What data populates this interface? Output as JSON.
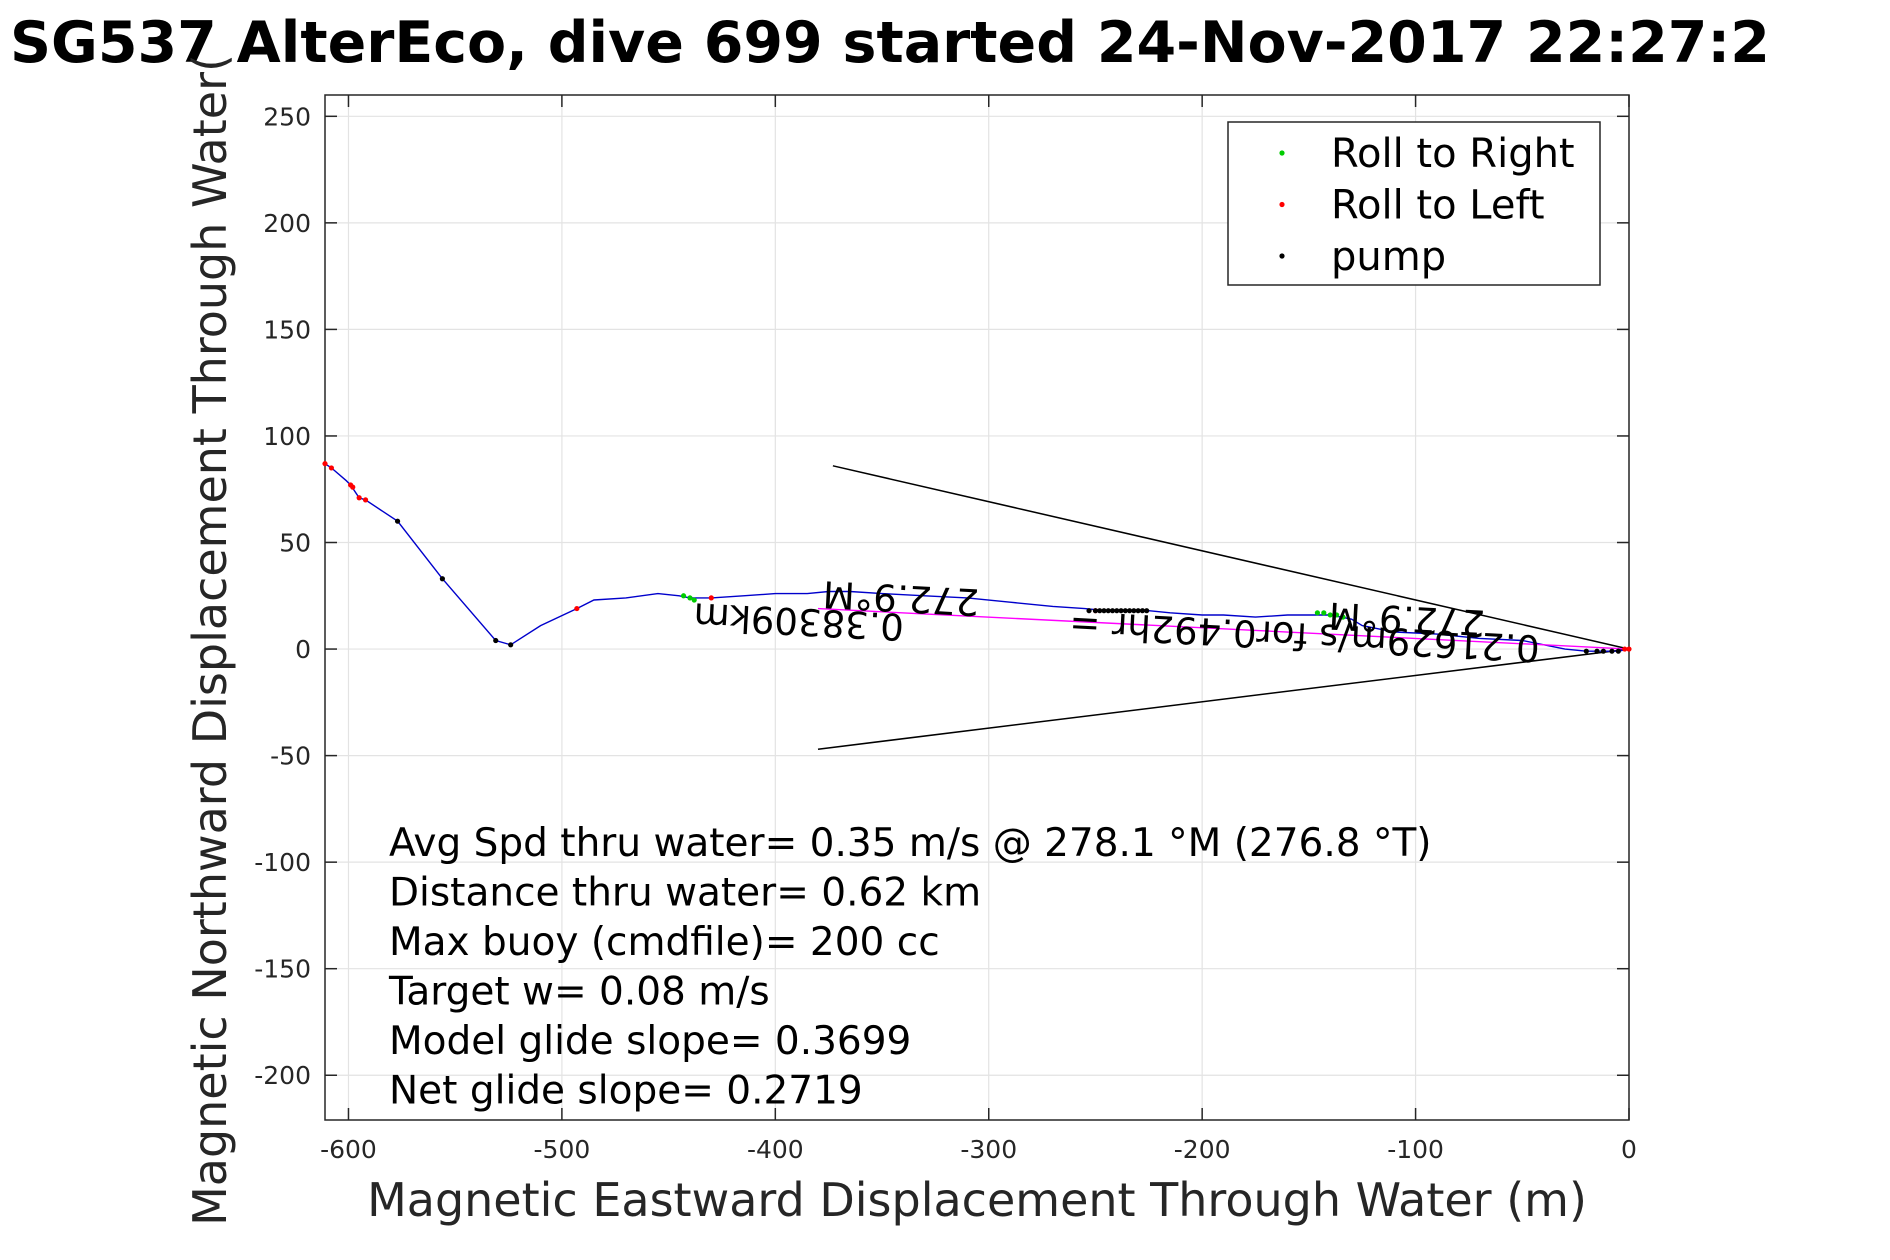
{
  "chart_data": {
    "type": "scatter",
    "title": "SG537 AlterEco, dive 699 started 24-Nov-2017 22:27:2",
    "xlabel": "Magnetic Eastward Displacement Through Water (m)",
    "ylabel": "Magnetic Northward Displacement Through Water(",
    "xlim": [
      -611,
      0
    ],
    "ylim": [
      -221,
      260
    ],
    "xticks": [
      -600,
      -500,
      -400,
      -300,
      -200,
      -100,
      0
    ],
    "yticks": [
      -200,
      -150,
      -100,
      -50,
      0,
      50,
      100,
      150,
      200,
      250
    ],
    "grid": true,
    "legend": {
      "placement": "top-right",
      "entries": [
        {
          "label": "Roll to Right",
          "color": "#00cc00"
        },
        {
          "label": "Roll to Left",
          "color": "#ff0000"
        },
        {
          "label": "pump",
          "color": "#000000"
        }
      ]
    },
    "track": {
      "color": "#0000cc",
      "points": [
        [
          0,
          0
        ],
        [
          -5,
          -1
        ],
        [
          -10,
          -1
        ],
        [
          -15,
          -1
        ],
        [
          -20,
          -1
        ],
        [
          -30,
          0
        ],
        [
          -50,
          4
        ],
        [
          -70,
          5
        ],
        [
          -90,
          7
        ],
        [
          -110,
          8
        ],
        [
          -125,
          11
        ],
        [
          -130,
          14
        ],
        [
          -135,
          15
        ],
        [
          -140,
          16
        ],
        [
          -146,
          16
        ],
        [
          -160,
          16
        ],
        [
          -175,
          15
        ],
        [
          -190,
          16
        ],
        [
          -200,
          16
        ],
        [
          -215,
          17
        ],
        [
          -225,
          18
        ],
        [
          -235,
          18
        ],
        [
          -245,
          18
        ],
        [
          -255,
          19
        ],
        [
          -270,
          20
        ],
        [
          -290,
          22
        ],
        [
          -310,
          24
        ],
        [
          -330,
          25
        ],
        [
          -350,
          26
        ],
        [
          -365,
          27
        ],
        [
          -375,
          27
        ],
        [
          -385,
          26
        ],
        [
          -400,
          26
        ],
        [
          -415,
          25
        ],
        [
          -430,
          24
        ],
        [
          -440,
          24
        ],
        [
          -445,
          25
        ],
        [
          -455,
          26
        ],
        [
          -470,
          24
        ],
        [
          -485,
          23
        ],
        [
          -493,
          19
        ],
        [
          -510,
          11
        ],
        [
          -524,
          2
        ],
        [
          -531,
          4
        ],
        [
          -556,
          33
        ],
        [
          -577,
          60
        ],
        [
          -592,
          70
        ],
        [
          -595,
          71
        ],
        [
          -599,
          77
        ],
        [
          -601,
          79
        ],
        [
          -608,
          85
        ],
        [
          -611,
          87
        ]
      ]
    },
    "bearing_line": {
      "color": "#ff00ff",
      "points": [
        [
          0,
          0
        ],
        [
          -380,
          19
        ]
      ]
    },
    "wedge_lines": {
      "color": "#000000",
      "lines": [
        [
          [
            0,
            0
          ],
          [
            -373,
            86
          ]
        ],
        [
          [
            0,
            0
          ],
          [
            -380,
            -47
          ]
        ]
      ]
    },
    "series": [
      {
        "name": "Roll to Right",
        "color": "#00cc00",
        "points": [
          [
            -440,
            24
          ],
          [
            -438,
            23
          ],
          [
            -443,
            25
          ],
          [
            -146,
            17
          ],
          [
            -143,
            17
          ],
          [
            -140,
            16
          ],
          [
            -137,
            16
          ],
          [
            -134,
            15
          ]
        ]
      },
      {
        "name": "Roll to Left",
        "color": "#ff0000",
        "points": [
          [
            -611,
            87
          ],
          [
            -608,
            85
          ],
          [
            -599,
            77
          ],
          [
            -598,
            76
          ],
          [
            -595,
            71
          ],
          [
            -592,
            70
          ],
          [
            -493,
            19
          ],
          [
            -430,
            24
          ],
          [
            -250,
            18
          ],
          [
            -2,
            0
          ],
          [
            0,
            0
          ]
        ]
      },
      {
        "name": "pump",
        "color": "#000000",
        "points": [
          [
            -577,
            60
          ],
          [
            -556,
            33
          ],
          [
            -531,
            4
          ],
          [
            -524,
            2
          ],
          [
            -253,
            18
          ],
          [
            -250,
            18
          ],
          [
            -248,
            18
          ],
          [
            -246,
            18
          ],
          [
            -244,
            18
          ],
          [
            -242,
            18
          ],
          [
            -240,
            18
          ],
          [
            -238,
            18
          ],
          [
            -236,
            18
          ],
          [
            -234,
            18
          ],
          [
            -232,
            18
          ],
          [
            -230,
            18
          ],
          [
            -228,
            18
          ],
          [
            -226,
            18
          ],
          [
            -20,
            -1
          ],
          [
            -15,
            -1
          ],
          [
            -12,
            -1
          ],
          [
            -8,
            -1
          ],
          [
            -5,
            -1
          ]
        ]
      }
    ],
    "rotated_annotations": [
      {
        "text": "272.9°M",
        "x": -341,
        "y": 25
      },
      {
        "text": "0.38309km",
        "x": -389,
        "y": 14
      },
      {
        "text": "0.21629m/s for0.492hr =",
        "x": -152,
        "y": 7
      },
      {
        "text": "272.9°M",
        "x": -104,
        "y": 15
      }
    ],
    "annotations": [
      {
        "text": "Avg Spd thru water=  0.35 m/s @ 278.1 °M (276.8 °T)"
      },
      {
        "text": "Distance thru water=  0.62 km"
      },
      {
        "text": "Max buoy (cmdfile)= 200 cc"
      },
      {
        "text": "Target w= 0.08 m/s"
      },
      {
        "text": "Model glide slope= 0.3699"
      },
      {
        "text": "Net glide slope= 0.2719"
      }
    ]
  }
}
